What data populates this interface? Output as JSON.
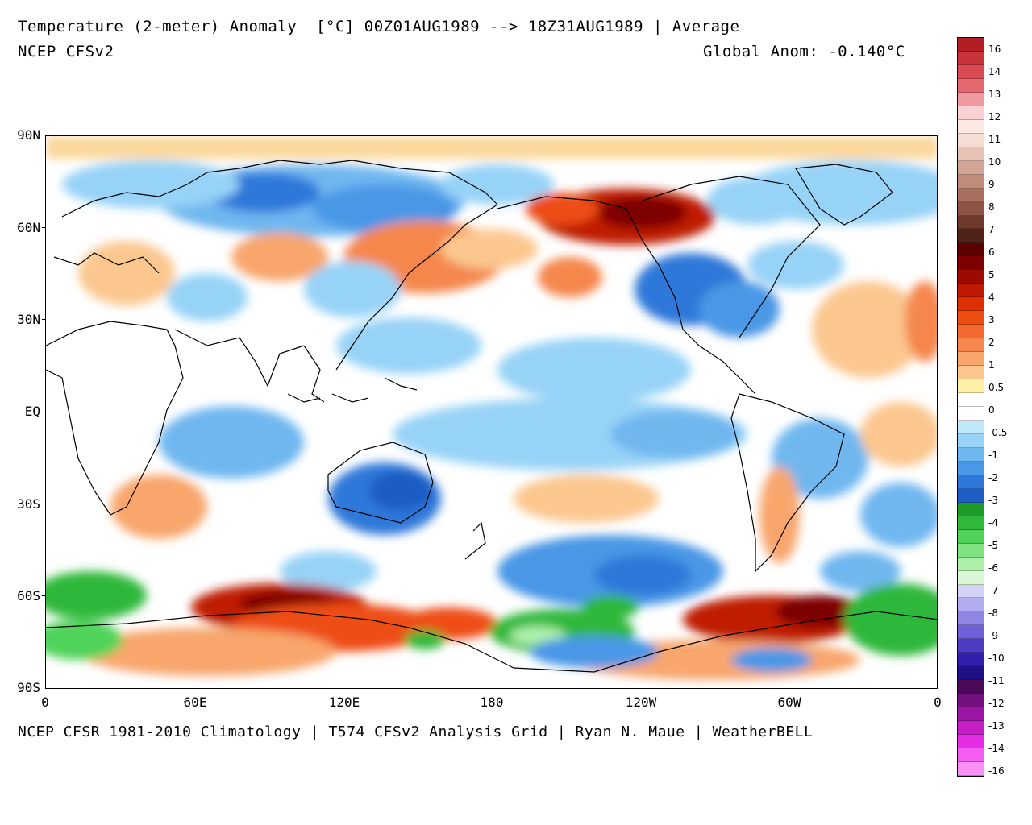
{
  "header": {
    "title": "Temperature (2-meter) Anomaly  [°C] 00Z01AUG1989 --> 18Z31AUG1989 | Average",
    "subtitle": "NCEP CFSv2",
    "global_anom": "Global Anom: -0.140°C"
  },
  "footer": {
    "credit": "NCEP CFSR 1981-2010 Climatology | T574 CFSv2 Analysis Grid | Ryan N. Maue | WeatherBELL"
  },
  "axes": {
    "lat_labels": [
      "90N",
      "60N",
      "30N",
      "EQ",
      "30S",
      "60S",
      "90S"
    ],
    "lon_labels": [
      "0",
      "60E",
      "120E",
      "180",
      "120W",
      "60W",
      "0"
    ]
  },
  "colorbar": {
    "labels": [
      "16",
      "14",
      "13",
      "12",
      "11",
      "10",
      "9",
      "8",
      "7",
      "6",
      "5",
      "4",
      "3",
      "2",
      "1",
      "0.5",
      "0",
      "-0.5",
      "-1",
      "-2",
      "-3",
      "-4",
      "-5",
      "-6",
      "-7",
      "-8",
      "-9",
      "-10",
      "-11",
      "-12",
      "-13",
      "-14",
      "-16"
    ],
    "colors": [
      "#b31d24",
      "#c9343b",
      "#d94a52",
      "#e4686f",
      "#ef9aa0",
      "#fbd2d4",
      "#fde9e3",
      "#f5ddd3",
      "#e6c3b6",
      "#d2a493",
      "#bf8b7b",
      "#a8705f",
      "#8c5444",
      "#6e3a2c",
      "#4f2317",
      "#5c0000",
      "#7d0000",
      "#9c0a00",
      "#bf1a00",
      "#dd3000",
      "#ee4e12",
      "#f2692f",
      "#f5874e",
      "#f8a66c",
      "#fbc78f",
      "#fff0a8",
      "#ffffff",
      "#ffffff",
      "#bfe9fb",
      "#97d3f7",
      "#6fb7f0",
      "#4a97e6",
      "#2f78d9",
      "#1f5dc4",
      "#1c9b2a",
      "#2fb83a",
      "#4fd35a",
      "#7fe37f",
      "#aef0aa",
      "#d9f7d4",
      "#d2d2f6",
      "#b1acef",
      "#8f86e4",
      "#6e60d6",
      "#4d3cc4",
      "#3020ad",
      "#1f1185",
      "#4a0a58",
      "#740f80",
      "#9c15a5",
      "#c41ec6",
      "#e52ee4",
      "#f45ef0",
      "#fa91f5"
    ]
  },
  "colors": {
    "ocean_neutral": "#ffffff",
    "coast": "#000000"
  }
}
